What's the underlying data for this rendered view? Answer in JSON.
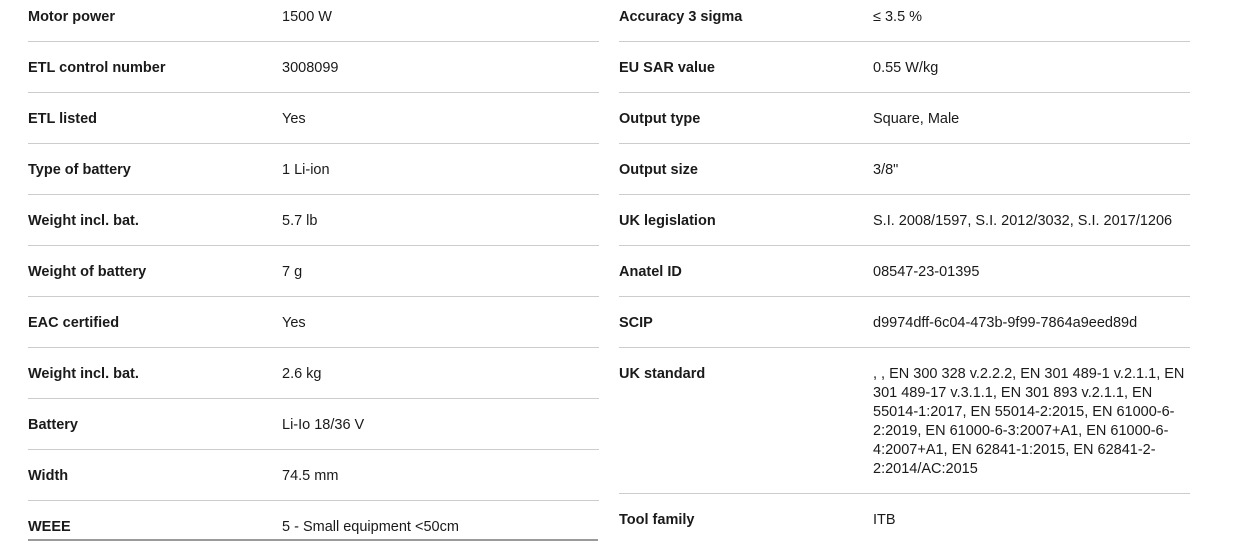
{
  "page": {
    "background_color": "#ffffff",
    "divider_color": "#cccccc",
    "text_color": "#1a1a1a"
  },
  "spec_table": {
    "left_column": {
      "rows": [
        {
          "label": "Motor power",
          "value": "1500 W"
        },
        {
          "label": "ETL control number",
          "value": "3008099"
        },
        {
          "label": "ETL listed",
          "value": "Yes"
        },
        {
          "label": "Type of battery",
          "value": "1 Li-ion"
        },
        {
          "label": "Weight incl. bat.",
          "value": "5.7 lb"
        },
        {
          "label": "Weight of battery",
          "value": "7 g"
        },
        {
          "label": "EAC certified",
          "value": "Yes"
        },
        {
          "label": "Weight incl. bat.",
          "value": "2.6 kg"
        },
        {
          "label": "Battery",
          "value": "Li-Io 18/36 V"
        },
        {
          "label": "Width",
          "value": "74.5 mm"
        },
        {
          "label": "WEEE",
          "value": "5 - Small equipment <50cm"
        }
      ]
    },
    "right_column": {
      "rows": [
        {
          "label": "Accuracy 3 sigma",
          "value": "≤ 3.5 %"
        },
        {
          "label": "EU SAR value",
          "value": "0.55 W/kg"
        },
        {
          "label": "Output type",
          "value": "Square, Male"
        },
        {
          "label": "Output size",
          "value": "3/8\""
        },
        {
          "label": "UK legislation",
          "value": "S.I. 2008/1597, S.I. 2012/3032, S.I. 2017/1206"
        },
        {
          "label": "Anatel ID",
          "value": "08547-23-01395"
        },
        {
          "label": "SCIP",
          "value": "d9974dff-6c04-473b-9f99-7864a9eed89d"
        },
        {
          "label": "UK standard",
          "value": ", , EN 300 328 v.2.2.2, EN 301 489-1 v.2.1.1, EN 301 489-17 v.3.1.1, EN 301 893 v.2.1.1, EN 55014-1:2017, EN 55014-2:2015, EN 61000-6-2:2019, EN 61000-6-3:2007+A1, EN 61000-6-4:2007+A1, EN 62841-1:2015, EN 62841-2-2:2014/AC:2015"
        },
        {
          "label": "Tool family",
          "value": "ITB"
        }
      ]
    }
  }
}
